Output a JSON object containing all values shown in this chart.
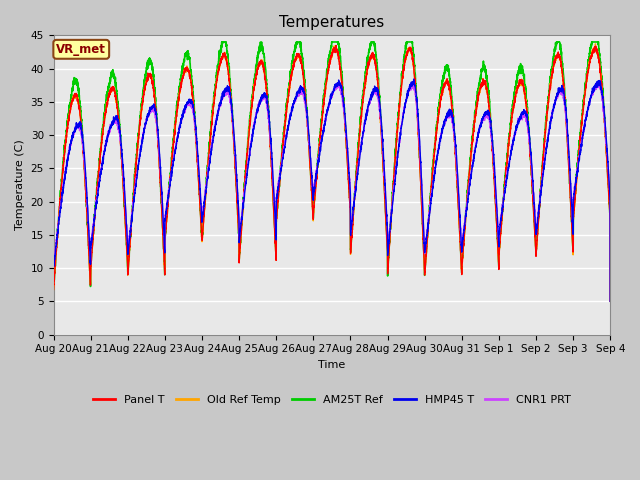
{
  "title": "Temperatures",
  "xlabel": "Time",
  "ylabel": "Temperature (C)",
  "ylim": [
    0,
    45
  ],
  "n_days": 15,
  "x_tick_labels": [
    "Aug 20",
    "Aug 21",
    "Aug 22",
    "Aug 23",
    "Aug 24",
    "Aug 25",
    "Aug 26",
    "Aug 27",
    "Aug 28",
    "Aug 29",
    "Aug 30",
    "Aug 31",
    "Sep 1",
    "Sep 2",
    "Sep 3",
    "Sep 4"
  ],
  "annotation_text": "VR_met",
  "annotation_color": "#8B0000",
  "annotation_bg": "#FFFFA0",
  "annotation_border": "#8B4513",
  "series_order": [
    "AM25T Ref",
    "Panel T",
    "Old Ref Temp",
    "CNR1 PRT",
    "HMP45 T"
  ],
  "series": {
    "Panel T": {
      "color": "#FF0000",
      "lw": 1.0
    },
    "Old Ref Temp": {
      "color": "#FFA500",
      "lw": 1.0
    },
    "AM25T Ref": {
      "color": "#00CC00",
      "lw": 1.2
    },
    "HMP45 T": {
      "color": "#0000EE",
      "lw": 1.0
    },
    "CNR1 PRT": {
      "color": "#CC44FF",
      "lw": 1.0
    }
  },
  "fig_facecolor": "#C8C8C8",
  "ax_facecolor": "#E8E8E8",
  "grid_color": "#FFFFFF",
  "title_fontsize": 11,
  "axis_label_fontsize": 8,
  "tick_fontsize": 7.5,
  "yticks": [
    0,
    5,
    10,
    15,
    20,
    25,
    30,
    35,
    40,
    45
  ]
}
